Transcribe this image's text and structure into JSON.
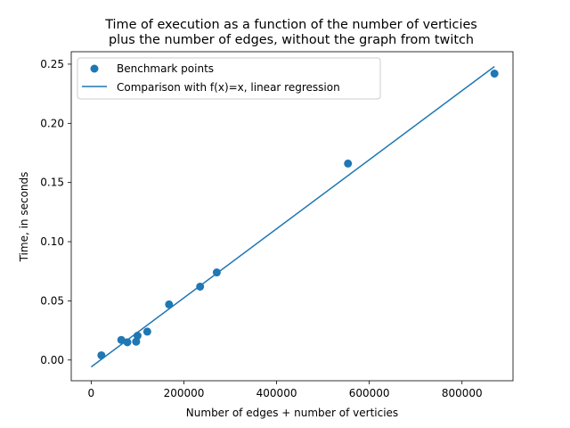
{
  "chart_data": {
    "type": "scatter",
    "title_lines": [
      "Time of execution as a function of the number of verticies",
      "plus the number of edges, without the graph from twitch"
    ],
    "xlabel": "Number of edges + number of verticies",
    "ylabel": "Time, in seconds",
    "xlim": [
      -43000,
      910000
    ],
    "ylim": [
      -0.0175,
      0.2605
    ],
    "x_ticks": [
      0,
      200000,
      400000,
      600000,
      800000
    ],
    "x_tick_labels": [
      "0",
      "200000",
      "400000",
      "600000",
      "800000"
    ],
    "y_ticks": [
      0.0,
      0.05,
      0.1,
      0.15,
      0.2,
      0.25
    ],
    "y_tick_labels": [
      "0.00",
      "0.05",
      "0.10",
      "0.15",
      "0.20",
      "0.25"
    ],
    "grid": false,
    "legend_placement": "top-left",
    "series": [
      {
        "name": "Benchmark points",
        "kind": "scatter",
        "color": "#1f77b4",
        "points": [
          [
            22000,
            0.004
          ],
          [
            65000,
            0.017
          ],
          [
            78000,
            0.015
          ],
          [
            97000,
            0.0155
          ],
          [
            100000,
            0.0205
          ],
          [
            121000,
            0.024
          ],
          [
            168000,
            0.047
          ],
          [
            235000,
            0.062
          ],
          [
            271000,
            0.074
          ],
          [
            554000,
            0.166
          ],
          [
            870000,
            0.242
          ]
        ]
      },
      {
        "name": "Comparison with f(x)=x, linear regression",
        "kind": "line",
        "color": "#1f77b4",
        "points": [
          [
            0,
            -0.0058
          ],
          [
            870000,
            0.248
          ]
        ]
      }
    ]
  }
}
